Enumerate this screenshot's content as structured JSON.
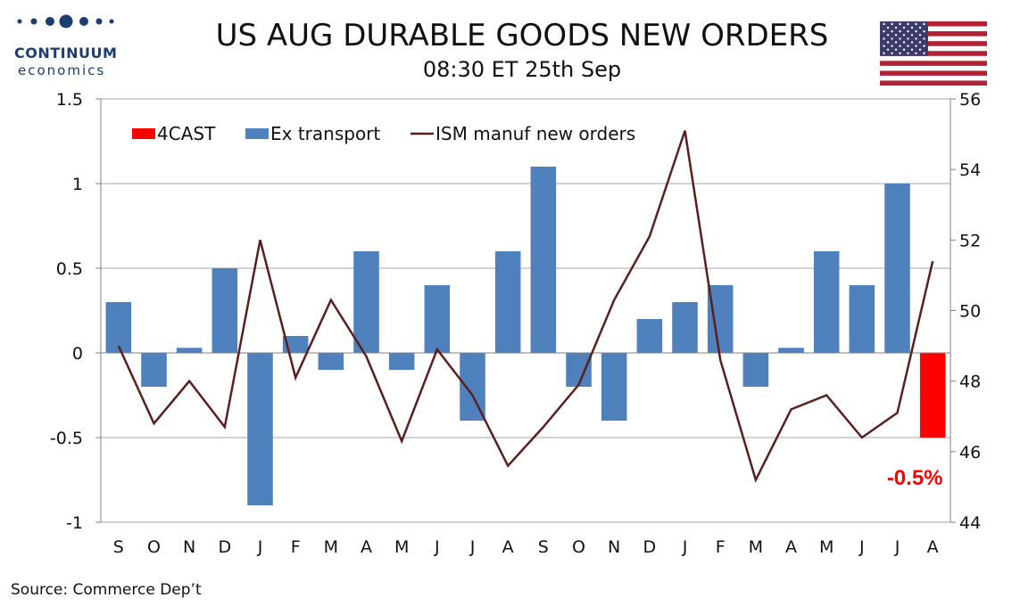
{
  "header": {
    "logo_name": "CONTINUUM",
    "logo_sub": "economics",
    "title": "US AUG DURABLE GOODS NEW ORDERS",
    "subtitle": "08:30 ET 25th Sep"
  },
  "footer": {
    "source": "Source: Commerce Dep’t"
  },
  "colors": {
    "forecast": "#ff0000",
    "ex_transport": "#4f81bd",
    "ism": "#5a1f1f",
    "logo": "#1d3d6e"
  },
  "chart_data": {
    "type": "bar",
    "categories": [
      "S",
      "O",
      "N",
      "D",
      "J",
      "F",
      "M",
      "A",
      "M",
      "J",
      "J",
      "A",
      "S",
      "O",
      "N",
      "D",
      "J",
      "F",
      "M",
      "A",
      "M",
      "J",
      "J",
      "A"
    ],
    "y_left": {
      "ticks": [
        "1.5",
        "1",
        "0.5",
        "0",
        "-0.5",
        "-1"
      ],
      "ylim": [
        -1,
        1.5
      ]
    },
    "y_right": {
      "ticks": [
        "56",
        "54",
        "52",
        "50",
        "48",
        "46",
        "44"
      ],
      "ylim": [
        44,
        56
      ]
    },
    "grid": true,
    "legend_position": "top-left",
    "series": [
      {
        "name": "4CAST",
        "kind": "bar",
        "axis": "left",
        "values": [
          null,
          null,
          null,
          null,
          null,
          null,
          null,
          null,
          null,
          null,
          null,
          null,
          null,
          null,
          null,
          null,
          null,
          null,
          null,
          null,
          null,
          null,
          null,
          -0.5
        ]
      },
      {
        "name": "Ex transport",
        "kind": "bar",
        "axis": "left",
        "values": [
          0.3,
          -0.2,
          0.03,
          0.5,
          -0.9,
          0.1,
          -0.1,
          0.6,
          -0.1,
          0.4,
          -0.4,
          0.6,
          1.1,
          -0.2,
          -0.4,
          0.2,
          0.3,
          0.4,
          -0.2,
          0.03,
          0.6,
          0.4,
          1.0,
          null
        ]
      },
      {
        "name": "ISM manuf new orders",
        "kind": "line",
        "axis": "right",
        "values": [
          49.0,
          46.8,
          48.0,
          46.7,
          52.0,
          48.1,
          50.3,
          48.7,
          46.3,
          48.9,
          47.6,
          45.6,
          46.7,
          47.9,
          50.3,
          52.1,
          55.1,
          48.6,
          45.2,
          47.2,
          47.6,
          46.4,
          47.1,
          51.4
        ]
      }
    ],
    "annotations": [
      {
        "text": "-0.5%",
        "category_index": 23
      }
    ]
  }
}
